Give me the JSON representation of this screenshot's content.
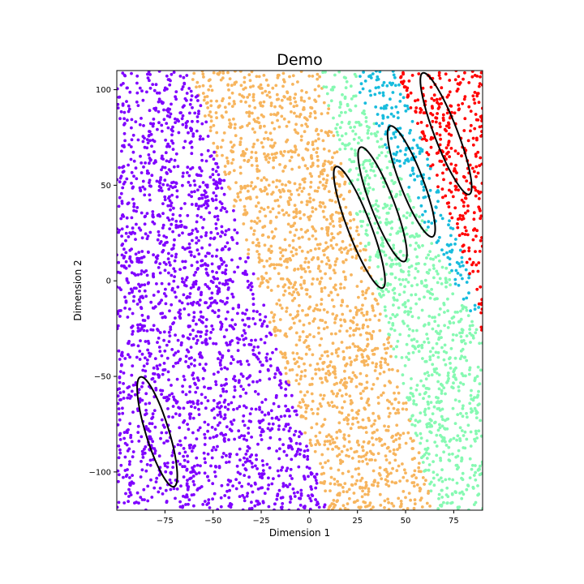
{
  "chart_data": {
    "type": "scatter",
    "title": "Demo",
    "xlabel": "Dimension 1",
    "ylabel": "Dimension 2",
    "xlim": [
      -100,
      90
    ],
    "ylim": [
      -120,
      110
    ],
    "xticks": [
      -75,
      -50,
      -25,
      0,
      25,
      50,
      75
    ],
    "yticks": [
      -100,
      -50,
      0,
      50,
      100
    ],
    "grid": false,
    "colors": {
      "purple": "#7f00ff",
      "orange": "#f7b55e",
      "mint": "#86f9b2",
      "cyan": "#18bcdd",
      "red": "#ff0000"
    },
    "point_count": 5000,
    "regions": [
      {
        "color": "purple",
        "description": "x < boundary ranging from about -60 at top to about 10 at bottom"
      },
      {
        "color": "orange",
        "description": "middle band"
      },
      {
        "color": "mint",
        "description": "band right of orange, x ~ 10-60 at top to 60-90 at bottom"
      },
      {
        "color": "cyan",
        "description": "band x ~ 25-50 at top shifting to 80-90 near y=-20"
      },
      {
        "color": "red",
        "description": "upper right, x > ~45 at top"
      }
    ],
    "ellipses": [
      {
        "cx": -79,
        "cy": -79,
        "rx": 6,
        "ry": 30,
        "angle_deg": 17
      },
      {
        "cx": 26,
        "cy": 28,
        "rx": 6,
        "ry": 34,
        "angle_deg": 21
      },
      {
        "cx": 38,
        "cy": 40,
        "rx": 6,
        "ry": 32,
        "angle_deg": 21
      },
      {
        "cx": 53,
        "cy": 52,
        "rx": 6,
        "ry": 31,
        "angle_deg": 21
      },
      {
        "cx": 71,
        "cy": 77,
        "rx": 6,
        "ry": 34,
        "angle_deg": 21
      }
    ]
  }
}
